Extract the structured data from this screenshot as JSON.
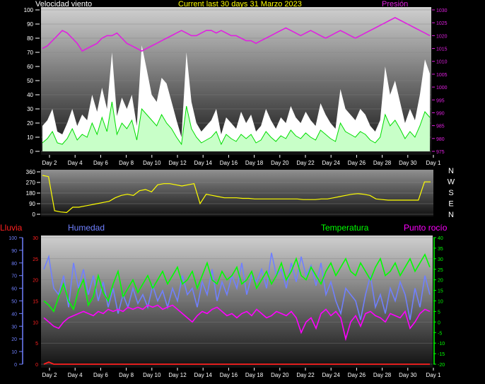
{
  "header": {
    "title": "Current last 30 days 31 Marzo 2023",
    "wind_label": "Velocidad viento",
    "pressure_label": "Presión"
  },
  "lower_header": {
    "rain_label": "Lluvia",
    "humidity_label": "Humedad",
    "temperature_label": "Temperatura",
    "dewpoint_label": "Punto rocío"
  },
  "colors": {
    "wind_gust": "#ffffff",
    "wind_avg": "#c8ffc8",
    "wind_line": "#00dd00",
    "pressure": "#e020e0",
    "direction": "#ffff00",
    "humidity": "#7080ff",
    "temperature": "#00ff00",
    "dewpoint": "#ff00ff",
    "rain": "#ff2020",
    "title": "#ffff00"
  },
  "chart_data": [
    {
      "type": "area",
      "name": "wind_pressure",
      "x_labels": [
        "Day 2",
        "Day 4",
        "Day 6",
        "Day 8",
        "Day 10",
        "Day 12",
        "Day 14",
        "Day 16",
        "Day 18",
        "Day 20",
        "Day 22",
        "Day 24",
        "Day 26",
        "Day 28",
        "Day 30",
        "Day 1"
      ],
      "left_axis": {
        "ticks": [
          "100",
          "90",
          "80",
          "70",
          "60",
          "50",
          "40",
          "30",
          "20",
          "10",
          "0"
        ],
        "ylim": [
          0,
          100
        ]
      },
      "right_axis": {
        "ticks": [
          "1030",
          "1025",
          "1020",
          "1015",
          "1010",
          "1005",
          "1000",
          "995",
          "990",
          "985",
          "980",
          "975"
        ],
        "ylim": [
          975,
          1030
        ]
      },
      "series": [
        {
          "name": "Velocidad viento",
          "kind": "gust",
          "values": [
            18,
            22,
            30,
            14,
            12,
            20,
            30,
            18,
            26,
            22,
            40,
            28,
            45,
            30,
            70,
            25,
            38,
            30,
            40,
            18,
            75,
            58,
            40,
            35,
            52,
            48,
            35,
            22,
            10,
            70,
            35,
            20,
            14,
            18,
            22,
            30,
            12,
            24,
            20,
            16,
            28,
            20,
            26,
            14,
            18,
            30,
            22,
            16,
            24,
            20,
            32,
            24,
            20,
            28,
            22,
            18,
            34,
            26,
            20,
            16,
            44,
            30,
            26,
            22,
            30,
            26,
            18,
            14,
            22,
            60,
            40,
            50,
            35,
            20,
            30,
            22,
            40,
            65,
            55
          ]
        },
        {
          "name": "avg",
          "kind": "avg",
          "values": [
            6,
            9,
            14,
            6,
            5,
            9,
            16,
            8,
            12,
            10,
            20,
            12,
            24,
            14,
            35,
            12,
            20,
            16,
            22,
            8,
            30,
            26,
            22,
            18,
            26,
            20,
            16,
            10,
            5,
            32,
            16,
            10,
            6,
            8,
            10,
            14,
            5,
            12,
            9,
            7,
            12,
            9,
            12,
            6,
            8,
            14,
            10,
            7,
            11,
            9,
            15,
            11,
            9,
            13,
            10,
            8,
            15,
            12,
            9,
            7,
            20,
            14,
            12,
            10,
            14,
            12,
            8,
            6,
            10,
            26,
            18,
            22,
            16,
            9,
            14,
            10,
            18,
            28,
            24
          ]
        },
        {
          "name": "Presión",
          "kind": "pressure",
          "values": [
            1015,
            1016,
            1018,
            1020,
            1022,
            1021,
            1019,
            1017,
            1014,
            1015,
            1016,
            1017,
            1019,
            1020,
            1020,
            1021,
            1019,
            1017,
            1016,
            1015,
            1014,
            1015,
            1016,
            1017,
            1018,
            1019,
            1020,
            1021,
            1022,
            1021,
            1020,
            1020,
            1021,
            1022,
            1022,
            1021,
            1022,
            1021,
            1020,
            1020,
            1019,
            1018,
            1018,
            1017,
            1018,
            1019,
            1020,
            1021,
            1022,
            1023,
            1022,
            1021,
            1020,
            1021,
            1022,
            1021,
            1020,
            1019,
            1020,
            1021,
            1022,
            1021,
            1020,
            1019,
            1020,
            1021,
            1022,
            1023,
            1024,
            1025,
            1026,
            1027,
            1026,
            1025,
            1024,
            1023,
            1022,
            1021,
            1020
          ]
        }
      ]
    },
    {
      "type": "scatter",
      "name": "wind_direction",
      "right_labels": [
        "N",
        "W",
        "S",
        "E",
        "N"
      ],
      "left_axis": {
        "ticks": [
          "360",
          "270",
          "180",
          "90",
          "0"
        ],
        "ylim": [
          0,
          360
        ]
      },
      "series": [
        {
          "name": "direction",
          "values": [
            330,
            320,
            30,
            20,
            15,
            60,
            60,
            70,
            80,
            90,
            100,
            110,
            140,
            160,
            170,
            160,
            200,
            210,
            190,
            250,
            260,
            260,
            250,
            240,
            250,
            260,
            90,
            170,
            160,
            150,
            140,
            140,
            140,
            135,
            135,
            130,
            130,
            130,
            130,
            130,
            130,
            130,
            130,
            125,
            125,
            125,
            130,
            130,
            140,
            150,
            160,
            170,
            175,
            170,
            160,
            130,
            125,
            120,
            120,
            120,
            120,
            120,
            120,
            275,
            275
          ]
        }
      ]
    },
    {
      "type": "line",
      "name": "temperature_humidity",
      "x_labels": [
        "Day 2",
        "Day 4",
        "Day 6",
        "Day 8",
        "Day 10",
        "Day 12",
        "Day 14",
        "Day 16",
        "Day 18",
        "Day 20",
        "Day 22",
        "Day 24",
        "Day 26",
        "Day 28",
        "Day 30",
        "Day 1"
      ],
      "left_axis": {
        "ticks": [
          "100",
          "90",
          "80",
          "70",
          "60",
          "50",
          "40",
          "30",
          "20",
          "10",
          "0"
        ],
        "ylim": [
          0,
          100
        ]
      },
      "rain_axis": {
        "ticks": [
          "30",
          "25",
          "20",
          "15",
          "10",
          "5",
          "0"
        ],
        "ylim": [
          0,
          30
        ]
      },
      "right_axis": {
        "ticks": [
          "40",
          "35",
          "30",
          "25",
          "20",
          "15",
          "10",
          "5",
          "0",
          "-5",
          "-10",
          "-15",
          "-20"
        ],
        "ylim": [
          -20,
          40
        ]
      },
      "series": [
        {
          "name": "Humedad",
          "values": [
            75,
            85,
            60,
            55,
            70,
            45,
            80,
            60,
            75,
            55,
            70,
            50,
            65,
            45,
            60,
            40,
            55,
            45,
            60,
            48,
            55,
            45,
            62,
            50,
            58,
            45,
            60,
            50,
            70,
            55,
            60,
            45,
            65,
            55,
            75,
            50,
            65,
            55,
            70,
            60,
            80,
            55,
            70,
            65,
            75,
            60,
            88,
            70,
            75,
            60,
            80,
            65,
            85,
            70,
            78,
            62,
            80,
            55,
            65,
            50,
            40,
            60,
            55,
            50,
            35,
            55,
            70,
            45,
            55,
            40,
            60,
            50,
            65,
            55,
            35,
            60,
            45,
            70,
            55
          ]
        },
        {
          "name": "Temperatura",
          "values": [
            10,
            8,
            5,
            12,
            18,
            10,
            6,
            15,
            20,
            8,
            12,
            22,
            14,
            10,
            18,
            24,
            12,
            16,
            20,
            14,
            18,
            22,
            16,
            20,
            24,
            18,
            22,
            26,
            18,
            20,
            24,
            16,
            22,
            28,
            20,
            18,
            24,
            20,
            22,
            26,
            18,
            20,
            24,
            16,
            20,
            24,
            18,
            22,
            28,
            20,
            24,
            30,
            22,
            20,
            26,
            22,
            18,
            24,
            28,
            22,
            26,
            30,
            24,
            22,
            28,
            24,
            20,
            26,
            30,
            22,
            24,
            28,
            22,
            26,
            30,
            24,
            28,
            32,
            26
          ]
        },
        {
          "name": "Punto rocío",
          "values": [
            2,
            0,
            -2,
            -3,
            0,
            2,
            3,
            4,
            5,
            4,
            3,
            5,
            4,
            6,
            5,
            6,
            5,
            7,
            6,
            7,
            6,
            8,
            7,
            8,
            6,
            7,
            8,
            6,
            4,
            2,
            0,
            3,
            5,
            4,
            6,
            7,
            5,
            3,
            4,
            2,
            4,
            5,
            3,
            6,
            4,
            2,
            3,
            5,
            4,
            3,
            5,
            2,
            -5,
            0,
            2,
            -3,
            4,
            6,
            3,
            5,
            2,
            -8,
            0,
            3,
            -2,
            4,
            5,
            3,
            2,
            0,
            4,
            3,
            2,
            5,
            -3,
            0,
            4,
            6,
            5
          ]
        },
        {
          "name": "Lluvia",
          "values": [
            0,
            0.5,
            0,
            0,
            0,
            0,
            0,
            0,
            0,
            0,
            0,
            0,
            0,
            0,
            0,
            0,
            0,
            0,
            0,
            0,
            0,
            0,
            0,
            0,
            0,
            0,
            0,
            0,
            0,
            0,
            0,
            0,
            0,
            0,
            0,
            0,
            0,
            0,
            0,
            0,
            0,
            0,
            0,
            0,
            0,
            0,
            0,
            0,
            0,
            0,
            0,
            0,
            0,
            0,
            0,
            0,
            0,
            0,
            0,
            0,
            0,
            0,
            0,
            0,
            0,
            0,
            0,
            0,
            0,
            0,
            0,
            0,
            0,
            0,
            0,
            0,
            0,
            0,
            0
          ]
        }
      ]
    }
  ]
}
